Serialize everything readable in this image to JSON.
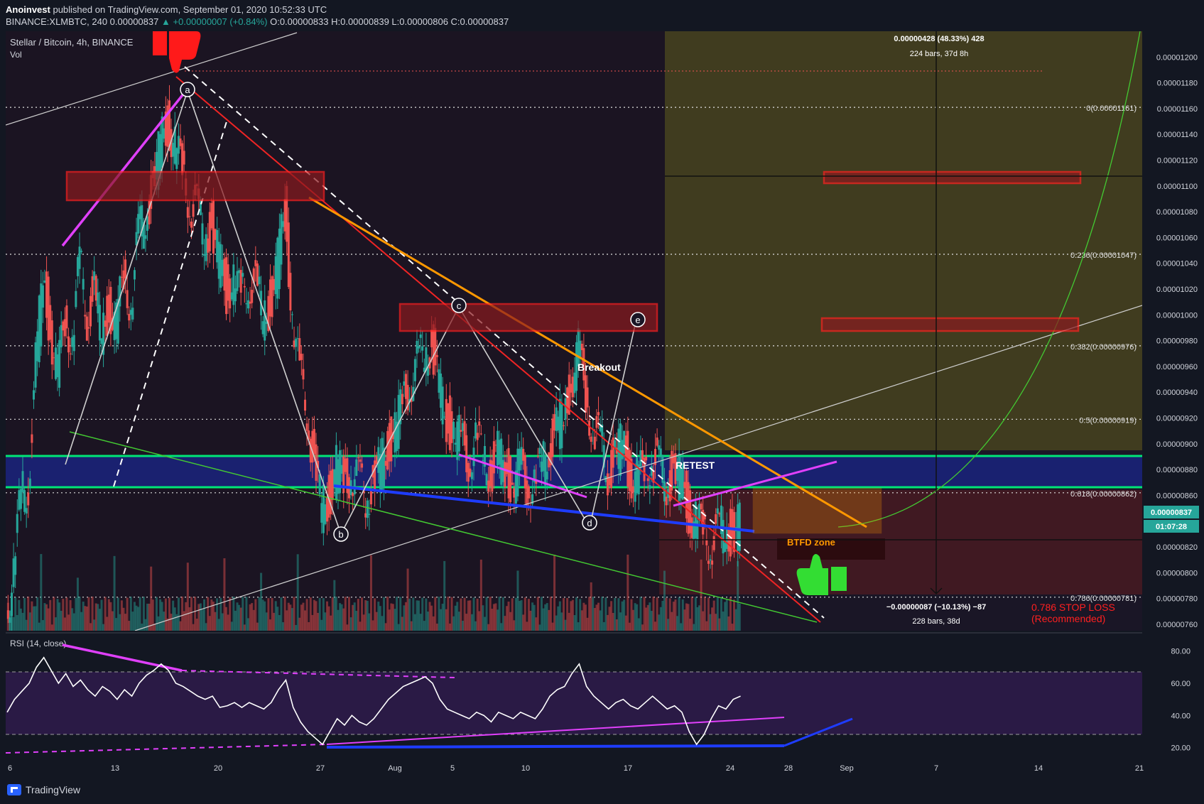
{
  "header": {
    "publisher": "Anoinvest",
    "published_text": "published on TradingView.com, September 01, 2020 10:52:33 UTC",
    "symbol_line": "BINANCE:XLMBTC, 240",
    "last": "0.00000837",
    "change": "▲ +0.00000007 (+0.84%)",
    "ohlc": "O:0.00000833 H:0.00000839 L:0.00000806 C:0.00000837"
  },
  "pane": {
    "title": "Stellar / Bitcoin, 4h, BINANCE",
    "vol_label": "Vol",
    "rsi_label": "RSI (14, close)"
  },
  "chart_data": {
    "type": "line",
    "x_axis_labels": [
      "6",
      "13",
      "20",
      "27",
      "Aug",
      "5",
      "10",
      "17",
      "24",
      "28",
      "Sep",
      "7",
      "14",
      "21"
    ],
    "price_axis_labels": [
      "0.00001200",
      "0.00001180",
      "0.00001160",
      "0.00001140",
      "0.00001120",
      "0.00001100",
      "0.00001080",
      "0.00001060",
      "0.00001040",
      "0.00001020",
      "0.00001000",
      "0.00000980",
      "0.00000960",
      "0.00000940",
      "0.00000920",
      "0.00000900",
      "0.00000880",
      "0.00000860",
      "0.00000820",
      "0.00000800",
      "0.00000780",
      "0.00000760"
    ],
    "ylim": [
      7.55e-06,
      1.22e-05
    ],
    "rsi_axis_labels": [
      "80.00",
      "60.00",
      "40.00",
      "20.00"
    ],
    "rsi_ylim": [
      15,
      90
    ],
    "last_price_badge": "0.00000837",
    "countdown_badge": "01:07:28",
    "price_series": [
      [
        6,
        7.7e-06
      ],
      [
        6.5,
        8e-06
      ],
      [
        7,
        8.6e-06
      ],
      [
        7.5,
        8.7e-06
      ],
      [
        8,
        9.6e-06
      ],
      [
        8.5,
        1.03e-05
      ],
      [
        9,
        9.9e-06
      ],
      [
        9.5,
        9.5e-06
      ],
      [
        10,
        1e-05
      ],
      [
        10.5,
        9.8e-06
      ],
      [
        11,
        1.04e-05
      ],
      [
        11.5,
        1e-05
      ],
      [
        12,
        1.02e-05
      ],
      [
        12.5,
        9.8e-06
      ],
      [
        13,
        1.01e-05
      ],
      [
        13.5,
        9.9e-06
      ],
      [
        14,
        1.03e-05
      ],
      [
        14.5,
        1.01e-05
      ],
      [
        15,
        1.06e-05
      ],
      [
        15.5,
        1.08e-05
      ],
      [
        16,
        1.1e-05
      ],
      [
        16.5,
        1.13e-05
      ],
      [
        17,
        1.15e-05
      ],
      [
        17.5,
        1.13e-05
      ],
      [
        18,
        1.11e-05
      ],
      [
        18.5,
        1.09e-05
      ],
      [
        19,
        1.08e-05
      ],
      [
        19.5,
        1.06e-05
      ],
      [
        20,
        1.07e-05
      ],
      [
        20.5,
        1.04e-05
      ],
      [
        21,
        1.02e-05
      ],
      [
        21.5,
        1.03e-05
      ],
      [
        22,
        1.01e-05
      ],
      [
        22.5,
        1.03e-05
      ],
      [
        23,
        1.02e-05
      ],
      [
        23.5,
        1e-05
      ],
      [
        24,
        1.01e-05
      ],
      [
        24.5,
        1.04e-05
      ],
      [
        25,
        1.08e-05
      ],
      [
        25.5,
        1e-05
      ],
      [
        26,
        9.5e-06
      ],
      [
        26.5,
        9.3e-06
      ],
      [
        27,
        8.8e-06
      ],
      [
        27.5,
        8.5e-06
      ],
      [
        28,
        8.6e-06
      ],
      [
        28.5,
        8.8e-06
      ],
      [
        29,
        8.7e-06
      ],
      [
        29.5,
        8.8e-06
      ],
      [
        30,
        8.7e-06
      ],
      [
        30.5,
        8.6e-06
      ],
      [
        31,
        8.7e-06
      ],
      [
        31.5,
        8.8e-06
      ],
      [
        32,
        9e-06
      ],
      [
        32.5,
        9.1e-06
      ],
      [
        33,
        9.3e-06
      ],
      [
        33.5,
        9.5e-06
      ],
      [
        34,
        9.6e-06
      ],
      [
        34.5,
        9.7e-06
      ],
      [
        35,
        9.8e-06
      ],
      [
        35.5,
        9.4e-06
      ],
      [
        36,
        9.2e-06
      ],
      [
        36.5,
        9.1e-06
      ],
      [
        37,
        9e-06
      ],
      [
        37.5,
        8.9e-06
      ],
      [
        38,
        9e-06
      ],
      [
        38.5,
        8.9e-06
      ],
      [
        39,
        8.8e-06
      ],
      [
        39.5,
        8.9e-06
      ],
      [
        40,
        8.8e-06
      ],
      [
        40.5,
        8.7e-06
      ],
      [
        41,
        8.8e-06
      ],
      [
        41.5,
        8.7e-06
      ],
      [
        42,
        8.7e-06
      ],
      [
        42.5,
        8.8e-06
      ],
      [
        43,
        9e-06
      ],
      [
        43.5,
        9.1e-06
      ],
      [
        44,
        9.2e-06
      ],
      [
        44.5,
        9.5e-06
      ],
      [
        45,
        9.7e-06
      ],
      [
        45.5,
        9.4e-06
      ],
      [
        46,
        9.1e-06
      ],
      [
        46.5,
        9e-06
      ],
      [
        47,
        8.8e-06
      ],
      [
        47.5,
        8.9e-06
      ],
      [
        48,
        9e-06
      ],
      [
        48.5,
        8.8e-06
      ],
      [
        49,
        8.7e-06
      ],
      [
        49.5,
        8.8e-06
      ],
      [
        50,
        8.9e-06
      ],
      [
        50.5,
        8.8e-06
      ],
      [
        51,
        8.7e-06
      ],
      [
        51.5,
        8.8e-06
      ],
      [
        52,
        8.7e-06
      ],
      [
        52.5,
        8.5e-06
      ],
      [
        53,
        8.4e-06
      ],
      [
        53.5,
        8.3e-06
      ],
      [
        54,
        8.25e-06
      ],
      [
        54.5,
        8.3e-06
      ],
      [
        55,
        8.35e-06
      ],
      [
        55.5,
        8.3e-06
      ],
      [
        56,
        8.37e-06
      ]
    ],
    "rsi_series": [
      [
        6,
        42
      ],
      [
        6.5,
        50
      ],
      [
        7,
        55
      ],
      [
        7.5,
        60
      ],
      [
        8,
        70
      ],
      [
        8.5,
        76
      ],
      [
        9,
        68
      ],
      [
        9.5,
        60
      ],
      [
        10,
        66
      ],
      [
        10.5,
        58
      ],
      [
        11,
        62
      ],
      [
        11.5,
        56
      ],
      [
        12,
        52
      ],
      [
        12.5,
        58
      ],
      [
        13,
        55
      ],
      [
        13.5,
        50
      ],
      [
        14,
        56
      ],
      [
        14.5,
        52
      ],
      [
        15,
        60
      ],
      [
        15.5,
        65
      ],
      [
        16,
        68
      ],
      [
        16.5,
        72
      ],
      [
        17,
        68
      ],
      [
        17.5,
        60
      ],
      [
        18,
        58
      ],
      [
        18.5,
        55
      ],
      [
        19,
        52
      ],
      [
        19.5,
        50
      ],
      [
        20,
        52
      ],
      [
        20.5,
        45
      ],
      [
        21,
        46
      ],
      [
        21.5,
        48
      ],
      [
        22,
        45
      ],
      [
        22.5,
        48
      ],
      [
        23,
        46
      ],
      [
        23.5,
        44
      ],
      [
        24,
        48
      ],
      [
        24.5,
        56
      ],
      [
        25,
        62
      ],
      [
        25.5,
        45
      ],
      [
        26,
        36
      ],
      [
        26.5,
        30
      ],
      [
        27,
        26
      ],
      [
        27.5,
        22
      ],
      [
        28,
        30
      ],
      [
        28.5,
        38
      ],
      [
        29,
        34
      ],
      [
        29.5,
        40
      ],
      [
        30,
        36
      ],
      [
        30.5,
        34
      ],
      [
        31,
        38
      ],
      [
        31.5,
        44
      ],
      [
        32,
        50
      ],
      [
        32.5,
        54
      ],
      [
        33,
        58
      ],
      [
        33.5,
        60
      ],
      [
        34,
        62
      ],
      [
        34.5,
        64
      ],
      [
        35,
        60
      ],
      [
        35.5,
        50
      ],
      [
        36,
        44
      ],
      [
        36.5,
        42
      ],
      [
        37,
        40
      ],
      [
        37.5,
        38
      ],
      [
        38,
        42
      ],
      [
        38.5,
        40
      ],
      [
        39,
        36
      ],
      [
        39.5,
        42
      ],
      [
        40,
        40
      ],
      [
        40.5,
        38
      ],
      [
        41,
        42
      ],
      [
        41.5,
        40
      ],
      [
        42,
        38
      ],
      [
        42.5,
        44
      ],
      [
        43,
        52
      ],
      [
        43.5,
        56
      ],
      [
        44,
        58
      ],
      [
        44.5,
        66
      ],
      [
        45,
        72
      ],
      [
        45.5,
        58
      ],
      [
        46,
        52
      ],
      [
        46.5,
        48
      ],
      [
        47,
        44
      ],
      [
        47.5,
        48
      ],
      [
        48,
        50
      ],
      [
        48.5,
        46
      ],
      [
        49,
        44
      ],
      [
        49.5,
        48
      ],
      [
        50,
        52
      ],
      [
        50.5,
        48
      ],
      [
        51,
        44
      ],
      [
        51.5,
        46
      ],
      [
        52,
        42
      ],
      [
        52.5,
        30
      ],
      [
        53,
        22
      ],
      [
        53.5,
        28
      ],
      [
        54,
        38
      ],
      [
        54.5,
        46
      ],
      [
        55,
        44
      ],
      [
        55.5,
        50
      ],
      [
        56,
        52
      ]
    ],
    "fib_levels": [
      {
        "label": "0(0.00001161)",
        "value": 1.161e-05
      },
      {
        "label": "0.236(0.00001047)",
        "value": 1.047e-05
      },
      {
        "label": "0.382(0.00000976)",
        "value": 9.76e-06
      },
      {
        "label": "0.5(0.00000919)",
        "value": 9.19e-06
      },
      {
        "label": "0.618(0.00000862)",
        "value": 8.62e-06
      },
      {
        "label": "0.786(0.00000781)",
        "value": 7.81e-06
      }
    ],
    "measure_up": {
      "line1": "0.00000428 (48.33%) 428",
      "line2": "224 bars, 37d 8h"
    },
    "measure_down": {
      "line1": "−0.00000087 (−10.13%) −87",
      "line2": "228 bars, 38d"
    },
    "annotations": {
      "breakout": "Breakout",
      "retest": "RETEST",
      "btfd": "BTFD zone",
      "stop1": "0.786 STOP LOSS",
      "stop2": "(Recommended)",
      "points": [
        "a",
        "b",
        "c",
        "d",
        "e"
      ]
    },
    "colors": {
      "up": "#26a69a",
      "down": "#ef5350",
      "fib_zone": "#6b6b1f",
      "stop_zone": "#5a1f25",
      "support_band": "#1a237e",
      "green_line": "#00e676"
    }
  }
}
